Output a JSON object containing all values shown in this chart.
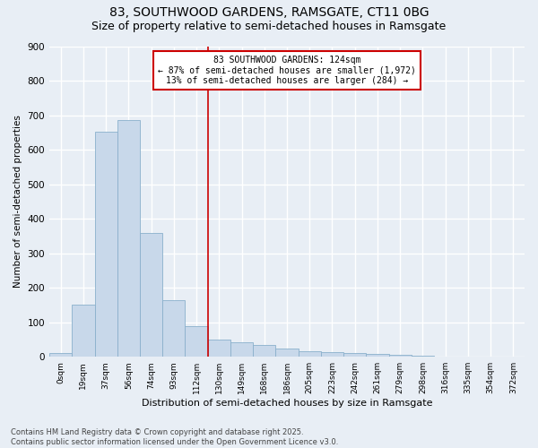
{
  "title1": "83, SOUTHWOOD GARDENS, RAMSGATE, CT11 0BG",
  "title2": "Size of property relative to semi-detached houses in Ramsgate",
  "xlabel": "Distribution of semi-detached houses by size in Ramsgate",
  "ylabel": "Number of semi-detached properties",
  "footnote": "Contains HM Land Registry data © Crown copyright and database right 2025.\nContains public sector information licensed under the Open Government Licence v3.0.",
  "bar_labels": [
    "0sqm",
    "19sqm",
    "37sqm",
    "56sqm",
    "74sqm",
    "93sqm",
    "112sqm",
    "130sqm",
    "149sqm",
    "168sqm",
    "186sqm",
    "205sqm",
    "223sqm",
    "242sqm",
    "261sqm",
    "279sqm",
    "298sqm",
    "316sqm",
    "335sqm",
    "354sqm",
    "372sqm"
  ],
  "bar_values": [
    10,
    152,
    651,
    686,
    358,
    165,
    88,
    50,
    42,
    33,
    25,
    15,
    13,
    10,
    8,
    5,
    2,
    0,
    0,
    0,
    0
  ],
  "bar_color": "#c8d8ea",
  "bar_edge_color": "#8ab0cc",
  "vline_x": 6.5,
  "vline_color": "#cc0000",
  "annotation_text": "83 SOUTHWOOD GARDENS: 124sqm\n← 87% of semi-detached houses are smaller (1,972)\n13% of semi-detached houses are larger (284) →",
  "annotation_box_edge": "#cc0000",
  "ylim": [
    0,
    900
  ],
  "yticks": [
    0,
    100,
    200,
    300,
    400,
    500,
    600,
    700,
    800,
    900
  ],
  "bg_color": "#e8eef5",
  "plot_bg_color": "#e8eef5",
  "grid_color": "#ffffff",
  "title_fontsize": 10,
  "subtitle_fontsize": 9,
  "figwidth": 6.0,
  "figheight": 5.0
}
